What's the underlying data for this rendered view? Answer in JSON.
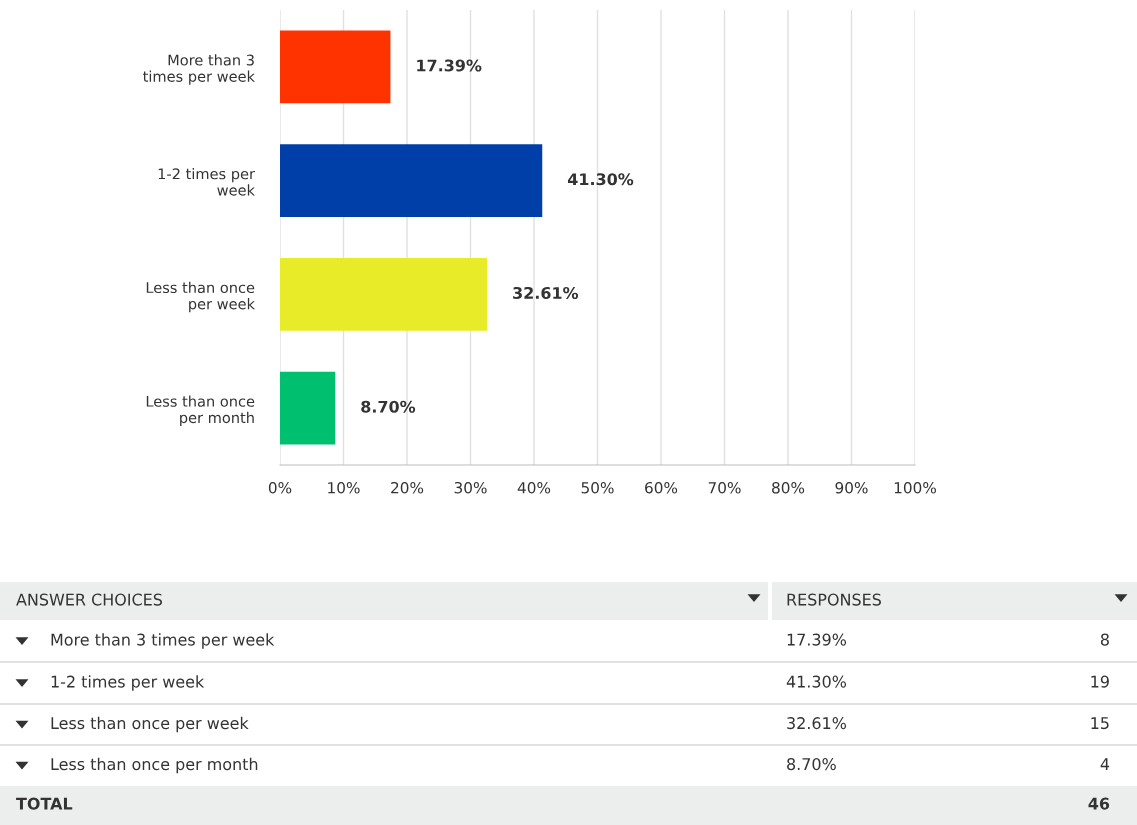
{
  "chart_data": {
    "type": "bar",
    "orientation": "horizontal",
    "categories": [
      "More than 3\ntimes per week",
      "1-2 times per\nweek",
      "Less than once\nper week",
      "Less than once\nper month"
    ],
    "values": [
      17.39,
      41.3,
      32.61,
      8.7
    ],
    "value_labels": [
      "17.39%",
      "41.30%",
      "32.61%",
      "8.70%"
    ],
    "colors": [
      "#ff3300",
      "#003fa7",
      "#e8ec28",
      "#00bf6f"
    ],
    "xlim": [
      0,
      100
    ],
    "xticks": [
      {
        "value": 0,
        "label": "0%"
      },
      {
        "value": 10,
        "label": "10%"
      },
      {
        "value": 20,
        "label": "20%"
      },
      {
        "value": 30,
        "label": "30%"
      },
      {
        "value": 40,
        "label": "40%"
      },
      {
        "value": 50,
        "label": "50%"
      },
      {
        "value": 60,
        "label": "60%"
      },
      {
        "value": 70,
        "label": "70%"
      },
      {
        "value": 80,
        "label": "80%"
      },
      {
        "value": 90,
        "label": "90%"
      },
      {
        "value": 100,
        "label": "100%"
      }
    ],
    "grid": "x",
    "annotations": [
      "ANSWER CHOICES",
      "RESPONSES",
      "8",
      "19",
      "15",
      "4",
      "TOTAL",
      "46"
    ]
  }
}
